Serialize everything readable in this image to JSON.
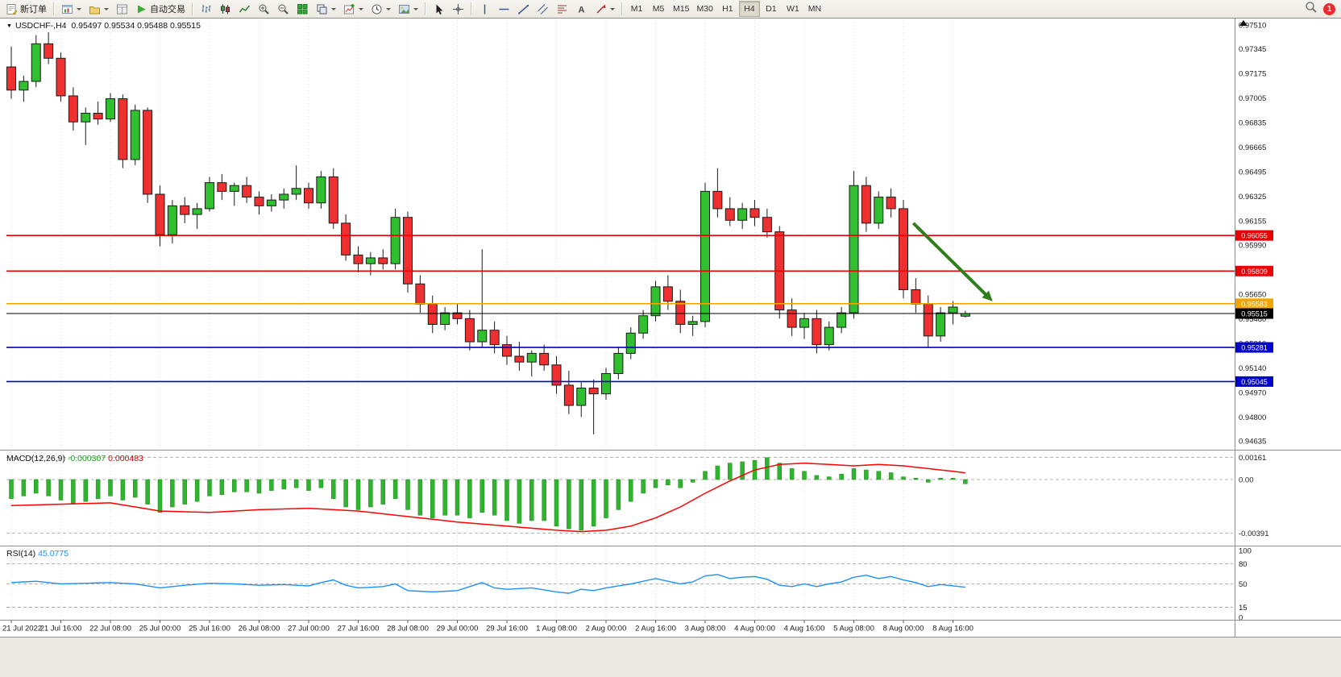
{
  "toolbar": {
    "new_order_label": "新订单",
    "autotrading_label": "自动交易",
    "timeframes": [
      "M1",
      "M5",
      "M15",
      "M30",
      "H1",
      "H4",
      "D1",
      "W1",
      "MN"
    ],
    "active_timeframe": "H4",
    "notification_count": "1"
  },
  "chart": {
    "symbol_label": "USDCHF-,H4",
    "ohlc_text": "0.95497 0.95534 0.95488 0.95515",
    "colors": {
      "bull": "#2fbf2f",
      "bear": "#f03030",
      "wick": "#1a1a1a",
      "resistance": "#e80000",
      "pivot": "#f0a500",
      "current": "#000000",
      "support": "#0000cc",
      "macd_hist": "#30b430",
      "macd_signal": "#ff0000",
      "rsi_line": "#1e90ff",
      "arrow": "#2f7d1c"
    }
  },
  "chart_data": [
    {
      "type": "candlestick",
      "title": "USDCHF-,H4",
      "y_min": 0.94635,
      "y_max": 0.9751,
      "y_axis_ticks": [
        "0.97510",
        "0.97345",
        "0.97175",
        "0.97005",
        "0.96835",
        "0.96665",
        "0.96495",
        "0.96325",
        "0.96155",
        "0.95990",
        "0.95820",
        "0.95650",
        "0.95480",
        "0.95310",
        "0.95140",
        "0.94970",
        "0.94800",
        "0.94635"
      ],
      "x_ticks": [
        "21 Jul 2022",
        "21 Jul 16:00",
        "22 Jul 08:00",
        "25 Jul 00:00",
        "25 Jul 16:00",
        "26 Jul 08:00",
        "27 Jul 00:00",
        "27 Jul 16:00",
        "28 Jul 08:00",
        "29 Jul 00:00",
        "29 Jul 16:00",
        "1 Aug 08:00",
        "2 Aug 00:00",
        "2 Aug 16:00",
        "3 Aug 08:00",
        "4 Aug 00:00",
        "4 Aug 16:00",
        "5 Aug 08:00",
        "8 Aug 00:00",
        "8 Aug 16:00"
      ],
      "candles_ohlc": [
        [
          0.9722,
          0.9736,
          0.97,
          0.9706
        ],
        [
          0.9706,
          0.9716,
          0.9698,
          0.9712
        ],
        [
          0.9712,
          0.9744,
          0.9708,
          0.9738
        ],
        [
          0.9738,
          0.9746,
          0.9724,
          0.9728
        ],
        [
          0.9728,
          0.9732,
          0.9698,
          0.9702
        ],
        [
          0.9702,
          0.9708,
          0.9678,
          0.9684
        ],
        [
          0.9684,
          0.9694,
          0.9668,
          0.969
        ],
        [
          0.969,
          0.9698,
          0.9682,
          0.9686
        ],
        [
          0.9686,
          0.9704,
          0.9684,
          0.97
        ],
        [
          0.97,
          0.9703,
          0.9652,
          0.9658
        ],
        [
          0.9658,
          0.9696,
          0.9654,
          0.9692
        ],
        [
          0.9692,
          0.9694,
          0.9628,
          0.9634
        ],
        [
          0.9634,
          0.964,
          0.9598,
          0.9606
        ],
        [
          0.9606,
          0.963,
          0.96,
          0.9626
        ],
        [
          0.9626,
          0.9632,
          0.9614,
          0.962
        ],
        [
          0.962,
          0.9628,
          0.961,
          0.9624
        ],
        [
          0.9624,
          0.9646,
          0.9622,
          0.9642
        ],
        [
          0.9642,
          0.9648,
          0.963,
          0.9636
        ],
        [
          0.9636,
          0.9642,
          0.9626,
          0.964
        ],
        [
          0.964,
          0.9646,
          0.9628,
          0.9632
        ],
        [
          0.9632,
          0.9636,
          0.962,
          0.9626
        ],
        [
          0.9626,
          0.9634,
          0.9622,
          0.963
        ],
        [
          0.963,
          0.9638,
          0.9624,
          0.9634
        ],
        [
          0.9634,
          0.9654,
          0.963,
          0.9638
        ],
        [
          0.9638,
          0.9642,
          0.9624,
          0.9628
        ],
        [
          0.9628,
          0.965,
          0.9624,
          0.9646
        ],
        [
          0.9646,
          0.9652,
          0.961,
          0.9614
        ],
        [
          0.9614,
          0.962,
          0.9588,
          0.9592
        ],
        [
          0.9592,
          0.9598,
          0.958,
          0.9586
        ],
        [
          0.9586,
          0.9594,
          0.9578,
          0.959
        ],
        [
          0.959,
          0.9596,
          0.9582,
          0.9586
        ],
        [
          0.9586,
          0.9624,
          0.9582,
          0.9618
        ],
        [
          0.9618,
          0.9622,
          0.9566,
          0.9572
        ],
        [
          0.9572,
          0.9578,
          0.9552,
          0.9558
        ],
        [
          0.9558,
          0.9564,
          0.9538,
          0.9544
        ],
        [
          0.9544,
          0.9556,
          0.954,
          0.9552
        ],
        [
          0.9552,
          0.9558,
          0.9544,
          0.9548
        ],
        [
          0.9548,
          0.9554,
          0.9526,
          0.9532
        ],
        [
          0.9532,
          0.9596,
          0.9528,
          0.954
        ],
        [
          0.954,
          0.9546,
          0.9524,
          0.953
        ],
        [
          0.953,
          0.9536,
          0.9516,
          0.9522
        ],
        [
          0.9522,
          0.9532,
          0.9512,
          0.9518
        ],
        [
          0.9518,
          0.9526,
          0.9508,
          0.9524
        ],
        [
          0.9524,
          0.953,
          0.9512,
          0.9516
        ],
        [
          0.9516,
          0.9522,
          0.9496,
          0.9502
        ],
        [
          0.9502,
          0.9512,
          0.9482,
          0.9488
        ],
        [
          0.9488,
          0.9504,
          0.948,
          0.95
        ],
        [
          0.95,
          0.9506,
          0.9468,
          0.9496
        ],
        [
          0.9496,
          0.9514,
          0.9492,
          0.951
        ],
        [
          0.951,
          0.9528,
          0.9506,
          0.9524
        ],
        [
          0.9524,
          0.9542,
          0.952,
          0.9538
        ],
        [
          0.9538,
          0.9554,
          0.9534,
          0.955
        ],
        [
          0.955,
          0.9574,
          0.9546,
          0.957
        ],
        [
          0.957,
          0.9578,
          0.9554,
          0.956
        ],
        [
          0.956,
          0.9568,
          0.9538,
          0.9544
        ],
        [
          0.9544,
          0.955,
          0.9536,
          0.9546
        ],
        [
          0.9546,
          0.9642,
          0.9542,
          0.9636
        ],
        [
          0.9636,
          0.9652,
          0.9618,
          0.9624
        ],
        [
          0.9624,
          0.9632,
          0.9612,
          0.9616
        ],
        [
          0.9616,
          0.9628,
          0.961,
          0.9624
        ],
        [
          0.9624,
          0.963,
          0.9612,
          0.9618
        ],
        [
          0.9618,
          0.9624,
          0.9604,
          0.9608
        ],
        [
          0.9608,
          0.9612,
          0.9548,
          0.9554
        ],
        [
          0.9554,
          0.9562,
          0.9536,
          0.9542
        ],
        [
          0.9542,
          0.9552,
          0.9534,
          0.9548
        ],
        [
          0.9548,
          0.9554,
          0.9524,
          0.953
        ],
        [
          0.953,
          0.9546,
          0.9526,
          0.9542
        ],
        [
          0.9542,
          0.9556,
          0.9538,
          0.9552
        ],
        [
          0.9552,
          0.965,
          0.9548,
          0.964
        ],
        [
          0.964,
          0.9646,
          0.9608,
          0.9614
        ],
        [
          0.9614,
          0.9636,
          0.961,
          0.9632
        ],
        [
          0.9632,
          0.9638,
          0.9618,
          0.9624
        ],
        [
          0.9624,
          0.963,
          0.9562,
          0.9568
        ],
        [
          0.9568,
          0.9576,
          0.9552,
          0.9558
        ],
        [
          0.9558,
          0.9564,
          0.9528,
          0.9536
        ],
        [
          0.9536,
          0.9556,
          0.9532,
          0.9552
        ],
        [
          0.9552,
          0.956,
          0.9544,
          0.9556
        ],
        [
          0.95497,
          0.95534,
          0.95488,
          0.95515
        ]
      ],
      "levels": [
        {
          "price": 0.96055,
          "label": "0.96055",
          "kind": "resistance"
        },
        {
          "price": 0.95809,
          "label": "0.95809",
          "kind": "resistance"
        },
        {
          "price": 0.95583,
          "label": "0.95583",
          "kind": "pivot"
        },
        {
          "price": 0.95515,
          "label": "0.95515",
          "kind": "current"
        },
        {
          "price": 0.95281,
          "label": "0.95281",
          "kind": "support"
        },
        {
          "price": 0.95045,
          "label": "0.95045",
          "kind": "support"
        }
      ],
      "annotation_arrow": {
        "x1_index": 72.8,
        "y1_price": 0.9614,
        "x2_index": 79.2,
        "y2_price": 0.956
      }
    },
    {
      "type": "bar",
      "name": "MACD(12,26,9)",
      "value_main": "-0.000307",
      "value_signal": "0.000483",
      "y_ticks": [
        {
          "label": "0.00161",
          "value": 0.00161
        },
        {
          "label": "0.00",
          "value": 0
        },
        {
          "label": "-0.00391",
          "value": -0.00391
        }
      ],
      "histogram": [
        -0.0014,
        -0.0012,
        -0.001,
        -0.0012,
        -0.0015,
        -0.0018,
        -0.0016,
        -0.0014,
        -0.0012,
        -0.0015,
        -0.0013,
        -0.0018,
        -0.0024,
        -0.002,
        -0.0018,
        -0.0016,
        -0.0012,
        -0.0011,
        -0.0009,
        -0.0009,
        -0.001,
        -0.0008,
        -0.0007,
        -0.0006,
        -0.0008,
        -0.0006,
        -0.0014,
        -0.002,
        -0.0022,
        -0.002,
        -0.0018,
        -0.0014,
        -0.0022,
        -0.0026,
        -0.0028,
        -0.0026,
        -0.0026,
        -0.0028,
        -0.0024,
        -0.0026,
        -0.003,
        -0.0032,
        -0.003,
        -0.003,
        -0.0034,
        -0.0036,
        -0.0037,
        -0.0034,
        -0.0028,
        -0.0022,
        -0.0016,
        -0.001,
        -0.0006,
        -0.0004,
        -0.0006,
        -0.0002,
        0.0006,
        0.001,
        0.0012,
        0.0013,
        0.0014,
        0.0016,
        0.0012,
        0.0008,
        0.0006,
        0.0003,
        0.0002,
        0.0004,
        0.0008,
        0.0007,
        0.0006,
        0.0005,
        0.0002,
        0.0001,
        -0.0002,
        0.0001,
        0.0001,
        -0.000307
      ],
      "signal_keypoints": [
        [
          0,
          -0.0019
        ],
        [
          4,
          -0.0018
        ],
        [
          8,
          -0.0017
        ],
        [
          12,
          -0.0023
        ],
        [
          16,
          -0.0024
        ],
        [
          20,
          -0.0022
        ],
        [
          24,
          -0.0021
        ],
        [
          28,
          -0.0023
        ],
        [
          32,
          -0.0027
        ],
        [
          36,
          -0.0031
        ],
        [
          40,
          -0.0034
        ],
        [
          44,
          -0.0037
        ],
        [
          46,
          -0.0038
        ],
        [
          48,
          -0.0037
        ],
        [
          50,
          -0.0034
        ],
        [
          52,
          -0.0028
        ],
        [
          54,
          -0.002
        ],
        [
          56,
          -0.001
        ],
        [
          58,
          -0.0001
        ],
        [
          60,
          0.0007
        ],
        [
          62,
          0.0011
        ],
        [
          64,
          0.0012
        ],
        [
          66,
          0.0011
        ],
        [
          68,
          0.001
        ],
        [
          70,
          0.0011
        ],
        [
          72,
          0.001
        ],
        [
          74,
          0.0008
        ],
        [
          76,
          0.0006
        ],
        [
          77,
          0.000483
        ]
      ]
    },
    {
      "type": "line",
      "name": "RSI(14)",
      "value": "45.0775",
      "y_ticks": [
        {
          "label": "100",
          "value": 100
        },
        {
          "label": "80",
          "value": 80
        },
        {
          "label": "50",
          "value": 50
        },
        {
          "label": "15",
          "value": 15
        },
        {
          "label": "0",
          "value": 0
        }
      ],
      "keypoints": [
        [
          0,
          52
        ],
        [
          2,
          54
        ],
        [
          4,
          50
        ],
        [
          6,
          51
        ],
        [
          8,
          52
        ],
        [
          10,
          50
        ],
        [
          12,
          44
        ],
        [
          14,
          48
        ],
        [
          16,
          51
        ],
        [
          18,
          50
        ],
        [
          20,
          48
        ],
        [
          22,
          49
        ],
        [
          24,
          47
        ],
        [
          25,
          52
        ],
        [
          26,
          56
        ],
        [
          27,
          48
        ],
        [
          28,
          44
        ],
        [
          30,
          46
        ],
        [
          31,
          50
        ],
        [
          32,
          40
        ],
        [
          34,
          38
        ],
        [
          36,
          40
        ],
        [
          38,
          52
        ],
        [
          39,
          44
        ],
        [
          40,
          42
        ],
        [
          42,
          44
        ],
        [
          44,
          38
        ],
        [
          45,
          36
        ],
        [
          46,
          42
        ],
        [
          47,
          40
        ],
        [
          48,
          44
        ],
        [
          50,
          50
        ],
        [
          52,
          58
        ],
        [
          53,
          54
        ],
        [
          54,
          50
        ],
        [
          55,
          53
        ],
        [
          56,
          62
        ],
        [
          57,
          64
        ],
        [
          58,
          58
        ],
        [
          59,
          60
        ],
        [
          60,
          61
        ],
        [
          61,
          57
        ],
        [
          62,
          48
        ],
        [
          63,
          46
        ],
        [
          64,
          50
        ],
        [
          65,
          46
        ],
        [
          66,
          50
        ],
        [
          67,
          53
        ],
        [
          68,
          60
        ],
        [
          69,
          63
        ],
        [
          70,
          58
        ],
        [
          71,
          61
        ],
        [
          72,
          56
        ],
        [
          73,
          52
        ],
        [
          74,
          46
        ],
        [
          75,
          49
        ],
        [
          76,
          47
        ],
        [
          77,
          45.08
        ]
      ]
    }
  ]
}
